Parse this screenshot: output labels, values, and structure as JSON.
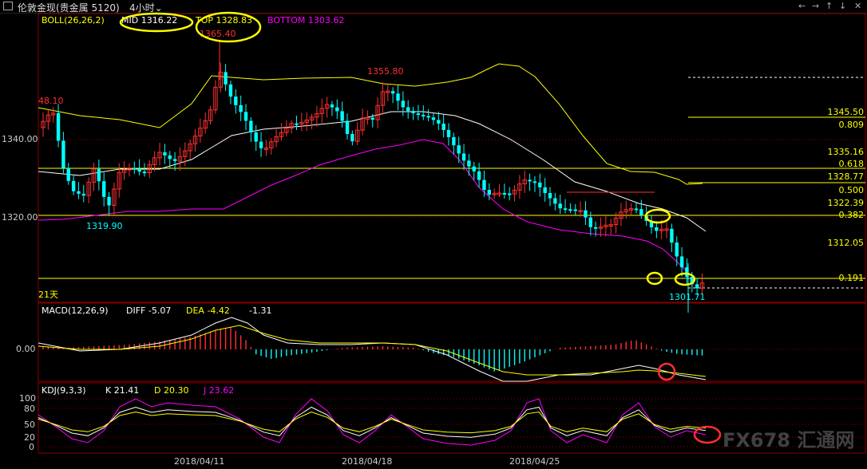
{
  "window": {
    "title": "伦敦金现(贵金属 5120)",
    "period": "4小时",
    "controls": [
      "←",
      "→",
      "↑",
      "↓",
      "✕"
    ]
  },
  "boll_legend": {
    "label": "BOLL(26,26,2)",
    "mid": "MID 1316.22",
    "top": "TOP 1328.83",
    "bottom": "BOTTOM 1303.62",
    "colors": {
      "mid": "#ffffff",
      "top": "#ffff00",
      "bottom": "#ff00ff"
    }
  },
  "macd_legend": {
    "label": "MACD(12,26,9)",
    "diff": "DIFF -5.07",
    "dea": "DEA -4.42",
    "macd": "-1.31"
  },
  "kdj_legend": {
    "label": "KDJ(9,3,3)",
    "k": "K 21.41",
    "d": "D 20.30",
    "j": "J 23.62"
  },
  "price_axis": {
    "labels": [
      "1340.00",
      "1320.00"
    ]
  },
  "macd_axis": {
    "labels": [
      "0.00"
    ]
  },
  "kdj_axis": {
    "labels": [
      "100",
      "80",
      "50",
      "20",
      "0"
    ]
  },
  "annotations": {
    "high_left": "48.10",
    "top_high": "1365.40",
    "mid_high": "1355.80",
    "low_left": "1319.90",
    "low_right": "1301.71",
    "period_label": "21天"
  },
  "fib_levels": [
    {
      "price": "1345.50",
      "ratio": "0.809"
    },
    {
      "price": "1335.16",
      "ratio": "0.618"
    },
    {
      "price": "1328.77",
      "ratio": "0.500"
    },
    {
      "price": "1322.39",
      "ratio": "0.382"
    },
    {
      "price": "1312.05",
      "ratio": "0.191"
    }
  ],
  "dates": [
    "2018/04/11",
    "2018/04/18",
    "2018/04/25"
  ],
  "watermark": "FX678 汇通网",
  "colors": {
    "up": "#ff3030",
    "down": "#00ffff",
    "fib": "#ffff00",
    "grid": "#8b0000",
    "axis": "#cccccc",
    "highlight": "#ffff00",
    "circle_red": "#ff3030"
  },
  "chart_data": {
    "type": "candlestick",
    "ylim": [
      1300,
      1368
    ],
    "prices": {
      "high_marker": 1365.4,
      "mid_marker": 1355.8,
      "low_left": 1319.9,
      "low_right": 1301.71,
      "left_high": 1348.1
    },
    "boll": {
      "mid": 1316.22,
      "top": 1328.83,
      "bottom": 1303.62
    },
    "macd": {
      "diff": -5.07,
      "dea": -4.42,
      "macd": -1.31
    },
    "kdj": {
      "k": 21.41,
      "d": 20.3,
      "j": 23.62
    },
    "fibonacci": [
      {
        "ratio": 0.809,
        "price": 1345.5
      },
      {
        "ratio": 0.618,
        "price": 1335.16
      },
      {
        "ratio": 0.5,
        "price": 1328.77
      },
      {
        "ratio": 0.382,
        "price": 1322.39
      },
      {
        "ratio": 0.191,
        "price": 1312.05
      }
    ],
    "x_ticks": [
      "2018/04/11",
      "2018/04/18",
      "2018/04/25"
    ]
  }
}
